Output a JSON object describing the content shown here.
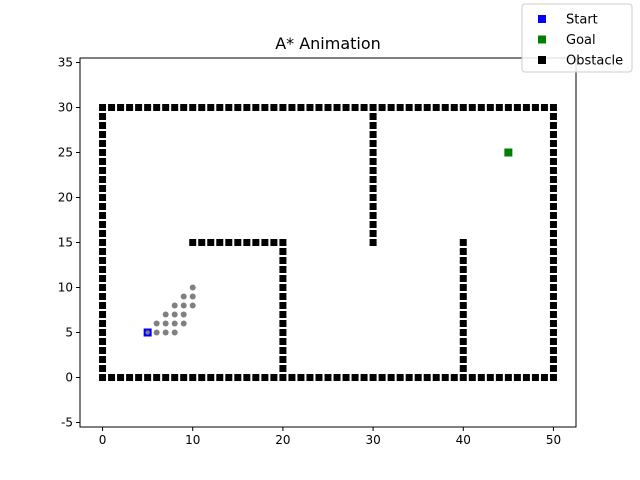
{
  "chart_data": {
    "type": "scatter",
    "title": "A* Animation",
    "xlabel": "",
    "ylabel": "",
    "xlim": [
      -2.5,
      52.5
    ],
    "ylim": [
      -5.5,
      35.5
    ],
    "xticks": [
      0,
      10,
      20,
      30,
      40,
      50
    ],
    "yticks": [
      -5,
      0,
      5,
      10,
      15,
      20,
      25,
      30,
      35
    ],
    "grid": false,
    "legend_position": "top-right",
    "legend": [
      {
        "label": "Start",
        "color": "#0000ff"
      },
      {
        "label": "Goal",
        "color": "#008000"
      },
      {
        "label": "Obstacle",
        "color": "#000000"
      }
    ],
    "start": {
      "x": 5,
      "y": 5,
      "color": "#0000ff"
    },
    "goal": {
      "x": 45,
      "y": 25,
      "color": "#008000"
    },
    "obstacle_color": "#000000",
    "obstacle_walls": [
      {
        "x": [
          0,
          50
        ],
        "y": [
          0,
          0
        ]
      },
      {
        "x": [
          0,
          50
        ],
        "y": [
          30,
          30
        ]
      },
      {
        "x": [
          0,
          0
        ],
        "y": [
          0,
          30
        ]
      },
      {
        "x": [
          50,
          50
        ],
        "y": [
          0,
          30
        ]
      },
      {
        "x": [
          10,
          20
        ],
        "y": [
          15,
          15
        ]
      },
      {
        "x": [
          20,
          20
        ],
        "y": [
          0,
          15
        ]
      },
      {
        "x": [
          30,
          30
        ],
        "y": [
          15,
          30
        ]
      },
      {
        "x": [
          40,
          40
        ],
        "y": [
          0,
          15
        ]
      }
    ],
    "explored_color": "#808080",
    "explored": [
      [
        6,
        5
      ],
      [
        7,
        5
      ],
      [
        8,
        5
      ],
      [
        6,
        6
      ],
      [
        7,
        6
      ],
      [
        8,
        6
      ],
      [
        9,
        6
      ],
      [
        7,
        7
      ],
      [
        8,
        7
      ],
      [
        9,
        7
      ],
      [
        8,
        8
      ],
      [
        9,
        8
      ],
      [
        10,
        8
      ],
      [
        9,
        9
      ],
      [
        10,
        9
      ],
      [
        10,
        10
      ]
    ]
  }
}
